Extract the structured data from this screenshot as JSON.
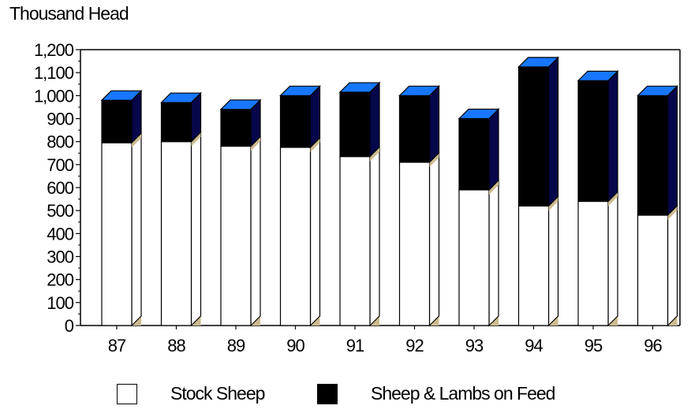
{
  "unit_label": "Thousand  Head",
  "legend": {
    "stock": "Stock  Sheep",
    "feed": "Sheep & Lambs on Feed"
  },
  "colors": {
    "stock": "#ffffff",
    "feed": "#000000",
    "top_face": "#1877ff",
    "feed_side": "#06064a",
    "stock_side": "#ffffff",
    "base_shade": "#cbbb8f"
  },
  "chart_data": {
    "type": "bar",
    "stacked": true,
    "three_d": true,
    "categories": [
      "87",
      "88",
      "89",
      "90",
      "91",
      "92",
      "93",
      "94",
      "95",
      "96"
    ],
    "series": [
      {
        "name": "Stock  Sheep",
        "values": [
          795,
          800,
          780,
          775,
          735,
          710,
          590,
          520,
          540,
          480
        ]
      },
      {
        "name": "Sheep & Lambs on Feed",
        "values": [
          185,
          170,
          160,
          225,
          280,
          290,
          310,
          605,
          525,
          520
        ]
      }
    ],
    "ylabel": "Thousand  Head",
    "ylim": [
      0,
      1200
    ],
    "yticks": [
      0,
      100,
      200,
      300,
      400,
      500,
      600,
      700,
      800,
      900,
      1000,
      1100,
      1200
    ],
    "ytick_labels": [
      "0",
      "100",
      "200",
      "300",
      "400",
      "500",
      "600",
      "700",
      "800",
      "900",
      "1,000",
      "1,100",
      "1,200"
    ],
    "grid": false,
    "legend_position": "bottom"
  }
}
